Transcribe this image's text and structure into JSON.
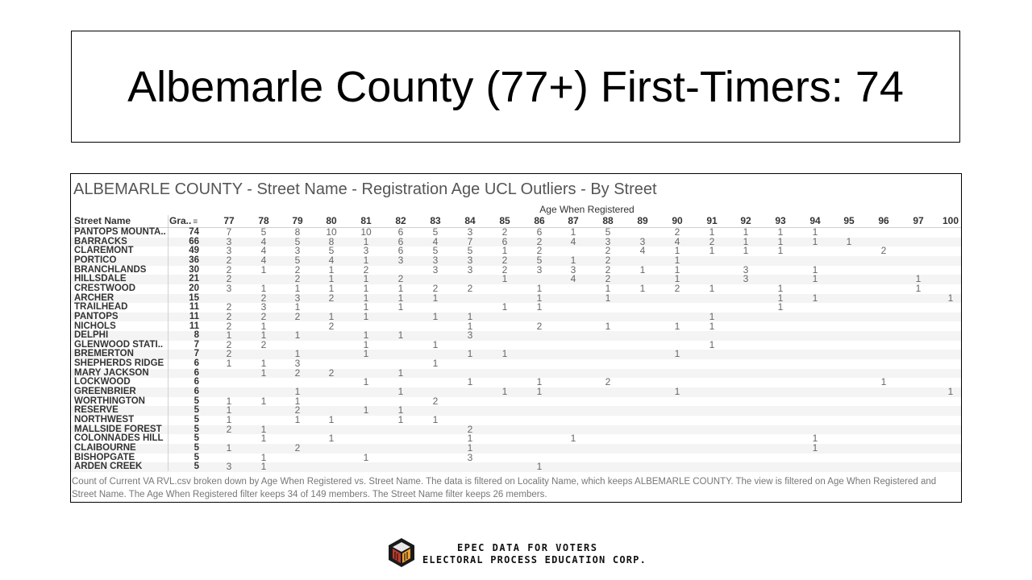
{
  "slide": {
    "title": "Albemarle County (77+) First-Timers: 74"
  },
  "viz": {
    "title": "ALBEMARLE COUNTY  - Street Name -  Registration Age UCL Outliers - By Street",
    "column_group_label": "Age When Registered",
    "row_header": "Street Name",
    "grand_header": "Gra..",
    "sort_icon": "sort-descending-icon",
    "ages": [
      "77",
      "78",
      "79",
      "80",
      "81",
      "82",
      "83",
      "84",
      "85",
      "86",
      "87",
      "88",
      "89",
      "90",
      "91",
      "92",
      "93",
      "94",
      "95",
      "96",
      "97",
      "100"
    ],
    "rows": [
      {
        "street": "PANTOPS MOUNTA..",
        "total": "74",
        "vals": [
          "7",
          "5",
          "8",
          "10",
          "10",
          "6",
          "5",
          "3",
          "2",
          "6",
          "1",
          "5",
          "",
          "2",
          "1",
          "1",
          "1",
          "1",
          "",
          "",
          "",
          ""
        ]
      },
      {
        "street": "BARRACKS",
        "total": "66",
        "vals": [
          "3",
          "4",
          "5",
          "8",
          "1",
          "6",
          "4",
          "7",
          "6",
          "2",
          "4",
          "3",
          "3",
          "4",
          "2",
          "1",
          "1",
          "1",
          "1",
          "",
          "",
          ""
        ]
      },
      {
        "street": "CLAREMONT",
        "total": "49",
        "vals": [
          "3",
          "4",
          "3",
          "5",
          "3",
          "6",
          "5",
          "5",
          "1",
          "2",
          "",
          "2",
          "4",
          "1",
          "1",
          "1",
          "1",
          "",
          "",
          "2",
          "",
          ""
        ]
      },
      {
        "street": "PORTICO",
        "total": "36",
        "vals": [
          "2",
          "4",
          "5",
          "4",
          "1",
          "3",
          "3",
          "3",
          "2",
          "5",
          "1",
          "2",
          "",
          "1",
          "",
          "",
          "",
          "",
          "",
          "",
          "",
          ""
        ]
      },
      {
        "street": "BRANCHLANDS",
        "total": "30",
        "vals": [
          "2",
          "1",
          "2",
          "1",
          "2",
          "",
          "3",
          "3",
          "2",
          "3",
          "3",
          "2",
          "1",
          "1",
          "",
          "3",
          "",
          "1",
          "",
          "",
          "",
          ""
        ]
      },
      {
        "street": "HILLSDALE",
        "total": "21",
        "vals": [
          "2",
          "",
          "2",
          "1",
          "1",
          "2",
          "",
          "",
          "1",
          "",
          "4",
          "2",
          "",
          "1",
          "",
          "3",
          "",
          "1",
          "",
          "",
          "1",
          ""
        ]
      },
      {
        "street": "CRESTWOOD",
        "total": "20",
        "vals": [
          "3",
          "1",
          "1",
          "1",
          "1",
          "1",
          "2",
          "2",
          "",
          "1",
          "",
          "1",
          "1",
          "2",
          "1",
          "",
          "1",
          "",
          "",
          "",
          "1",
          ""
        ]
      },
      {
        "street": "ARCHER",
        "total": "15",
        "vals": [
          "",
          "2",
          "3",
          "2",
          "1",
          "1",
          "1",
          "",
          "",
          "1",
          "",
          "1",
          "",
          "",
          "",
          "",
          "1",
          "1",
          "",
          "",
          "",
          "1"
        ]
      },
      {
        "street": "TRAILHEAD",
        "total": "11",
        "vals": [
          "2",
          "3",
          "1",
          "",
          "1",
          "1",
          "",
          "",
          "1",
          "1",
          "",
          "",
          "",
          "",
          "",
          "",
          "1",
          "",
          "",
          "",
          "",
          ""
        ]
      },
      {
        "street": "PANTOPS",
        "total": "11",
        "vals": [
          "2",
          "2",
          "2",
          "1",
          "1",
          "",
          "1",
          "1",
          "",
          "",
          "",
          "",
          "",
          "",
          "1",
          "",
          "",
          "",
          "",
          "",
          "",
          ""
        ]
      },
      {
        "street": "NICHOLS",
        "total": "11",
        "vals": [
          "2",
          "1",
          "",
          "2",
          "",
          "",
          "",
          "1",
          "",
          "2",
          "",
          "1",
          "",
          "1",
          "1",
          "",
          "",
          "",
          "",
          "",
          "",
          ""
        ]
      },
      {
        "street": "DELPHI",
        "total": "8",
        "vals": [
          "1",
          "1",
          "1",
          "",
          "1",
          "1",
          "",
          "3",
          "",
          "",
          "",
          "",
          "",
          "",
          "",
          "",
          "",
          "",
          "",
          "",
          "",
          ""
        ]
      },
      {
        "street": "GLENWOOD STATI..",
        "total": "7",
        "vals": [
          "2",
          "2",
          "",
          "",
          "1",
          "",
          "1",
          "",
          "",
          "",
          "",
          "",
          "",
          "",
          "1",
          "",
          "",
          "",
          "",
          "",
          "",
          ""
        ]
      },
      {
        "street": "BREMERTON",
        "total": "7",
        "vals": [
          "2",
          "",
          "1",
          "",
          "1",
          "",
          "",
          "1",
          "1",
          "",
          "",
          "",
          "",
          "1",
          "",
          "",
          "",
          "",
          "",
          "",
          "",
          ""
        ]
      },
      {
        "street": "SHEPHERDS RIDGE",
        "total": "6",
        "vals": [
          "1",
          "1",
          "3",
          "",
          "",
          "",
          "1",
          "",
          "",
          "",
          "",
          "",
          "",
          "",
          "",
          "",
          "",
          "",
          "",
          "",
          "",
          ""
        ]
      },
      {
        "street": "MARY JACKSON",
        "total": "6",
        "vals": [
          "",
          "1",
          "2",
          "2",
          "",
          "1",
          "",
          "",
          "",
          "",
          "",
          "",
          "",
          "",
          "",
          "",
          "",
          "",
          "",
          "",
          "",
          ""
        ]
      },
      {
        "street": "LOCKWOOD",
        "total": "6",
        "vals": [
          "",
          "",
          "",
          "",
          "1",
          "",
          "",
          "1",
          "",
          "1",
          "",
          "2",
          "",
          "",
          "",
          "",
          "",
          "",
          "",
          "1",
          "",
          ""
        ]
      },
      {
        "street": "GREENBRIER",
        "total": "6",
        "vals": [
          "",
          "",
          "1",
          "",
          "",
          "1",
          "",
          "",
          "1",
          "1",
          "",
          "",
          "",
          "1",
          "",
          "",
          "",
          "",
          "",
          "",
          "",
          "1"
        ]
      },
      {
        "street": "WORTHINGTON",
        "total": "5",
        "vals": [
          "1",
          "1",
          "1",
          "",
          "",
          "",
          "2",
          "",
          "",
          "",
          "",
          "",
          "",
          "",
          "",
          "",
          "",
          "",
          "",
          "",
          "",
          ""
        ]
      },
      {
        "street": "RESERVE",
        "total": "5",
        "vals": [
          "1",
          "",
          "2",
          "",
          "1",
          "1",
          "",
          "",
          "",
          "",
          "",
          "",
          "",
          "",
          "",
          "",
          "",
          "",
          "",
          "",
          "",
          ""
        ]
      },
      {
        "street": "NORTHWEST",
        "total": "5",
        "vals": [
          "1",
          "",
          "1",
          "1",
          "",
          "1",
          "1",
          "",
          "",
          "",
          "",
          "",
          "",
          "",
          "",
          "",
          "",
          "",
          "",
          "",
          "",
          ""
        ]
      },
      {
        "street": "MALLSIDE FOREST",
        "total": "5",
        "vals": [
          "2",
          "1",
          "",
          "",
          "",
          "",
          "",
          "2",
          "",
          "",
          "",
          "",
          "",
          "",
          "",
          "",
          "",
          "",
          "",
          "",
          "",
          ""
        ]
      },
      {
        "street": "COLONNADES HILL",
        "total": "5",
        "vals": [
          "",
          "1",
          "",
          "1",
          "",
          "",
          "",
          "1",
          "",
          "",
          "1",
          "",
          "",
          "",
          "",
          "",
          "",
          "1",
          "",
          "",
          "",
          ""
        ]
      },
      {
        "street": "CLAIBOURNE",
        "total": "5",
        "vals": [
          "1",
          "",
          "2",
          "",
          "",
          "",
          "",
          "1",
          "",
          "",
          "",
          "",
          "",
          "",
          "",
          "",
          "",
          "1",
          "",
          "",
          "",
          ""
        ]
      },
      {
        "street": "BISHOPGATE",
        "total": "5",
        "vals": [
          "",
          "1",
          "",
          "",
          "1",
          "",
          "",
          "3",
          "",
          "",
          "",
          "",
          "",
          "",
          "",
          "",
          "",
          "",
          "",
          "",
          "",
          ""
        ]
      },
      {
        "street": "ARDEN CREEK",
        "total": "5",
        "vals": [
          "3",
          "1",
          "",
          "",
          "",
          "",
          "",
          "",
          "",
          "1",
          "",
          "",
          "",
          "",
          "",
          "",
          "",
          "",
          "",
          "",
          "",
          ""
        ]
      }
    ],
    "caption": "Count of Current VA RVL.csv broken down by Age When Registered vs. Street Name. The data is filtered on Locality Name, which keeps ALBEMARLE COUNTY. The view is filtered on Age When Registered and Street Name. The Age When Registered filter keeps 34 of 149 members. The Street Name filter keeps 26 members."
  },
  "footer": {
    "logo_icon": "epec-cube-logo-icon",
    "line1": "EPEC DATA FOR VOTERS",
    "line2": "ELECTORAL PROCESS EDUCATION CORP."
  }
}
